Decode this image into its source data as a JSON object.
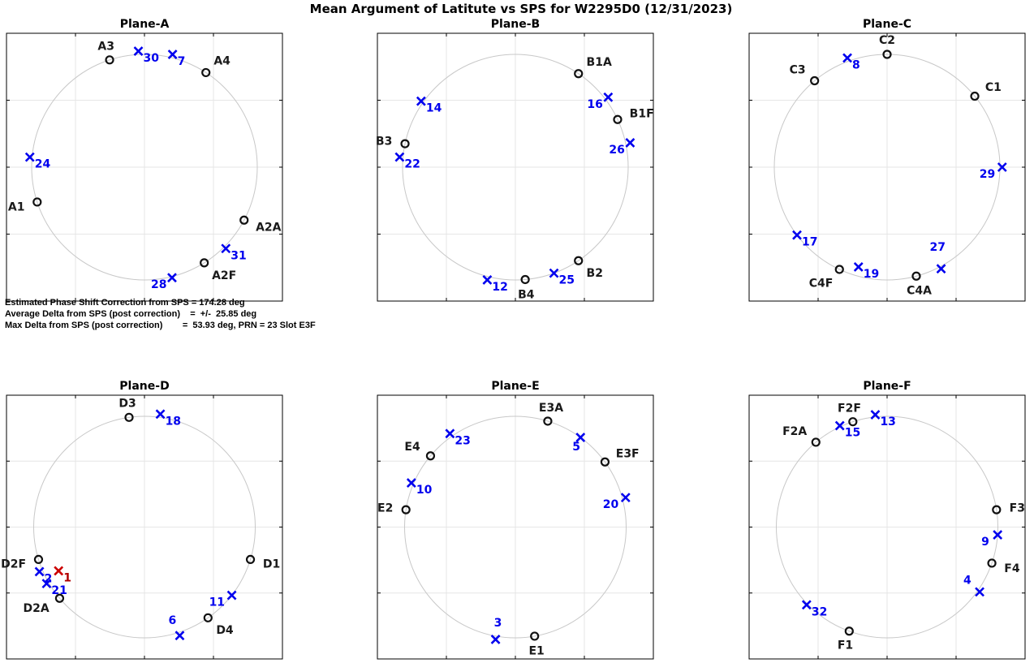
{
  "title": "Mean Argument of Latitute vs SPS  for W2295D0  (12/31/2023)",
  "stats": {
    "phase_shift": "Estimated Phase Shift Correction from SPS = 174.28 deg",
    "avg_delta": "Average Delta from SPS (post correction)    =  +/-  25.85 deg",
    "max_delta": "Max Delta from SPS (post correction)        =  53.93 deg, PRN = 23 Slot E3F"
  },
  "colors": {
    "slot": "#111111",
    "sv": "#0000ee",
    "sv_bad": "#cc0000",
    "circle": "#c8c8c8",
    "grid": "#e6e6e6",
    "axes": "#000000"
  },
  "chart_data": [
    {
      "type": "scatter",
      "title": "Plane-A",
      "grid": true,
      "slots": [
        {
          "label": "A1",
          "angle": 198
        },
        {
          "label": "A2A",
          "angle": -28
        },
        {
          "label": "A2F",
          "angle": -58
        },
        {
          "label": "A3",
          "angle": 108
        },
        {
          "label": "A4",
          "angle": 57
        }
      ],
      "svs": [
        {
          "label": "30",
          "angle": 93,
          "r": 1.03
        },
        {
          "label": "7",
          "angle": 76,
          "r": 1.03
        },
        {
          "label": "24",
          "angle": 175,
          "r": 1.02
        },
        {
          "label": "31",
          "angle": -45,
          "r": 1.02
        },
        {
          "label": "28",
          "angle": -76,
          "r": 1.01,
          "dx": -26
        }
      ]
    },
    {
      "type": "scatter",
      "title": "Plane-B",
      "grid": true,
      "slots": [
        {
          "label": "B1A",
          "angle": 56
        },
        {
          "label": "B1F",
          "angle": 25
        },
        {
          "label": "B2",
          "angle": -56
        },
        {
          "label": "B3",
          "angle": 168
        },
        {
          "label": "B4",
          "angle": -85
        }
      ],
      "svs": [
        {
          "label": "14",
          "angle": 145,
          "r": 1.02
        },
        {
          "label": "16",
          "angle": 37,
          "r": 1.03,
          "dx": -26
        },
        {
          "label": "26",
          "angle": 12,
          "r": 1.04,
          "dx": -26
        },
        {
          "label": "22",
          "angle": 175,
          "r": 1.03
        },
        {
          "label": "12",
          "angle": -104,
          "r": 1.03
        },
        {
          "label": "25",
          "angle": -70,
          "r": 1.0
        }
      ]
    },
    {
      "type": "scatter",
      "title": "Plane-C",
      "grid": true,
      "slots": [
        {
          "label": "C1",
          "angle": 39
        },
        {
          "label": "C2",
          "angle": 90
        },
        {
          "label": "C3",
          "angle": 130
        },
        {
          "label": "C4A",
          "angle": -75
        },
        {
          "label": "C4F",
          "angle": -115
        }
      ],
      "svs": [
        {
          "label": "8",
          "angle": 110,
          "r": 1.03
        },
        {
          "label": "29",
          "angle": 0,
          "r": 1.02,
          "dx": -28
        },
        {
          "label": "17",
          "angle": -143,
          "r": 1.0
        },
        {
          "label": "19",
          "angle": -106,
          "r": 0.92
        },
        {
          "label": "27",
          "angle": -62,
          "r": 1.02,
          "dx": -14,
          "dy": -22
        }
      ]
    },
    {
      "type": "scatter",
      "title": "Plane-D",
      "grid": true,
      "slots": [
        {
          "label": "D1",
          "angle": -17
        },
        {
          "label": "D2A",
          "angle": -140
        },
        {
          "label": "D2F",
          "angle": -163
        },
        {
          "label": "D3",
          "angle": 98
        },
        {
          "label": "D4",
          "angle": -55
        }
      ],
      "svs": [
        {
          "label": "18",
          "angle": 82,
          "r": 1.03
        },
        {
          "label": "21",
          "angle": -150,
          "r": 1.02
        },
        {
          "label": "2",
          "angle": -157,
          "r": 1.03
        },
        {
          "label": "11",
          "angle": -38,
          "r": 1.0,
          "dx": -28
        },
        {
          "label": "6",
          "angle": -72,
          "r": 1.03,
          "dx": -14,
          "dy": -14
        },
        {
          "label": "1",
          "angle": -153,
          "r": 0.87,
          "bad": true
        }
      ]
    },
    {
      "type": "scatter",
      "title": "Plane-E",
      "grid": true,
      "slots": [
        {
          "label": "E1",
          "angle": -80
        },
        {
          "label": "E2",
          "angle": 171
        },
        {
          "label": "E3A",
          "angle": 73
        },
        {
          "label": "E3F",
          "angle": 36
        },
        {
          "label": "E4",
          "angle": 140
        }
      ],
      "svs": [
        {
          "label": "23",
          "angle": 125,
          "r": 1.03
        },
        {
          "label": "5",
          "angle": 54,
          "r": 1.0,
          "dx": -10,
          "dy": 16
        },
        {
          "label": "20",
          "angle": 15,
          "r": 1.03,
          "dx": -28
        },
        {
          "label": "10",
          "angle": 157,
          "r": 1.02
        },
        {
          "label": "3",
          "angle": -100,
          "r": 1.03,
          "dx": -2,
          "dy": -16
        }
      ]
    },
    {
      "type": "scatter",
      "title": "Plane-F",
      "grid": true,
      "slots": [
        {
          "label": "F1",
          "angle": -110
        },
        {
          "label": "F2A",
          "angle": 130
        },
        {
          "label": "F2F",
          "angle": 108
        },
        {
          "label": "F3",
          "angle": 9
        },
        {
          "label": "F4",
          "angle": -19
        }
      ],
      "svs": [
        {
          "label": "13",
          "angle": 96,
          "r": 1.02
        },
        {
          "label": "15",
          "angle": 115,
          "r": 1.01
        },
        {
          "label": "9",
          "angle": -4,
          "r": 1.0,
          "dx": -20
        },
        {
          "label": "4",
          "angle": -35,
          "r": 1.02,
          "dx": -20,
          "dy": -10
        },
        {
          "label": "32",
          "angle": -136,
          "r": 1.01
        }
      ]
    }
  ]
}
